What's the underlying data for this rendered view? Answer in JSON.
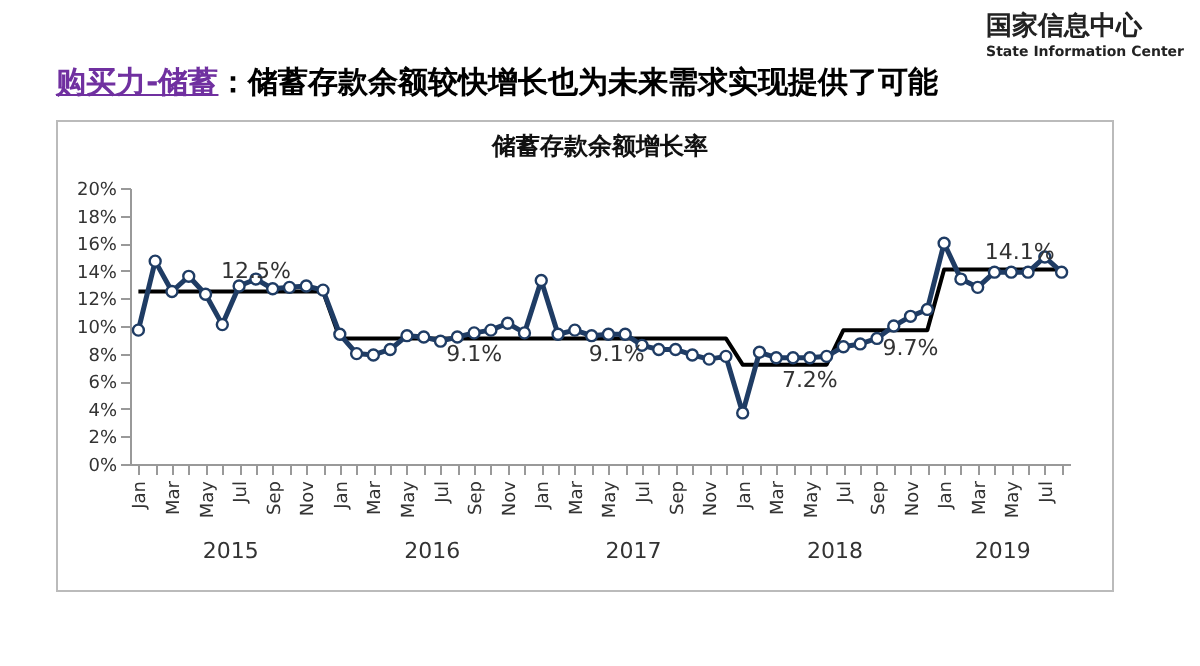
{
  "chart_data": {
    "type": "line",
    "title": "储蓄存款余额增长率",
    "categories": [
      "Jan",
      null,
      "Mar",
      null,
      "May",
      null,
      "Jul",
      null,
      "Sep",
      null,
      "Nov",
      null,
      "Jan",
      null,
      "Mar",
      null,
      "May",
      null,
      "Jul",
      null,
      "Sep",
      null,
      "Nov",
      null,
      "Jan",
      null,
      "Mar",
      null,
      "May",
      null,
      "Jul",
      null,
      "Sep",
      null,
      "Nov",
      null,
      "Jan",
      null,
      "Mar",
      null,
      "May",
      null,
      "Jul",
      null,
      "Sep",
      null,
      "Nov",
      null,
      "Jan",
      null,
      "Mar",
      null,
      "May",
      null,
      "Jul",
      null
    ],
    "series": [
      {
        "color": "#1f3c64",
        "marker": "circle",
        "values": [
          9.7,
          14.7,
          12.5,
          13.6,
          12.3,
          10.1,
          12.9,
          13.4,
          12.7,
          12.8,
          12.9,
          12.6,
          9.4,
          8.0,
          7.9,
          8.3,
          9.3,
          9.2,
          8.9,
          9.2,
          9.5,
          9.7,
          10.2,
          9.5,
          13.3,
          9.4,
          9.7,
          9.3,
          9.4,
          9.4,
          8.6,
          8.3,
          8.3,
          7.9,
          7.6,
          7.8,
          3.7,
          8.1,
          7.7,
          7.7,
          7.7,
          7.8,
          8.5,
          8.7,
          9.1,
          10.0,
          10.7,
          11.2,
          16.0,
          13.4,
          12.8,
          13.9,
          13.9,
          13.9,
          15.0,
          13.9
        ]
      },
      {
        "color": "#000000",
        "marker": "none",
        "values": [
          12.5,
          12.5,
          12.5,
          12.5,
          12.5,
          12.5,
          12.5,
          12.5,
          12.5,
          12.5,
          12.5,
          12.5,
          9.1,
          9.1,
          9.1,
          9.1,
          9.1,
          9.1,
          9.1,
          9.1,
          9.1,
          9.1,
          9.1,
          9.1,
          9.1,
          9.1,
          9.1,
          9.1,
          9.1,
          9.1,
          9.1,
          9.1,
          9.1,
          9.1,
          9.1,
          9.1,
          7.2,
          7.2,
          7.2,
          7.2,
          7.2,
          7.2,
          9.7,
          9.7,
          9.7,
          9.7,
          9.7,
          9.7,
          14.1,
          14.1,
          14.1,
          14.1,
          14.1,
          14.1,
          14.1,
          14.1
        ]
      }
    ],
    "ylim": [
      0,
      20
    ],
    "yticks": [
      {
        "value": 0,
        "label": "0%"
      },
      {
        "value": 2,
        "label": "2%"
      },
      {
        "value": 4,
        "label": "4%"
      },
      {
        "value": 6,
        "label": "6%"
      },
      {
        "value": 8,
        "label": "8%"
      },
      {
        "value": 10,
        "label": "10%"
      },
      {
        "value": 12,
        "label": "12%"
      },
      {
        "value": 14,
        "label": "14%"
      },
      {
        "value": 16,
        "label": "16%"
      },
      {
        "value": 18,
        "label": "18%"
      },
      {
        "value": 20,
        "label": "20%"
      }
    ],
    "line_style": "solid",
    "annotations": [
      "购买力-储蓄",
      "：储蓄存款余额较快增长也为未来需求实现提供了可能",
      "国家信息中心",
      "State Information Center",
      "12.5%",
      "9.1%",
      "9.1%",
      "7.2%",
      "9.7%",
      "14.1%",
      "2015",
      "2016",
      "2017",
      "2018",
      "2019"
    ]
  }
}
